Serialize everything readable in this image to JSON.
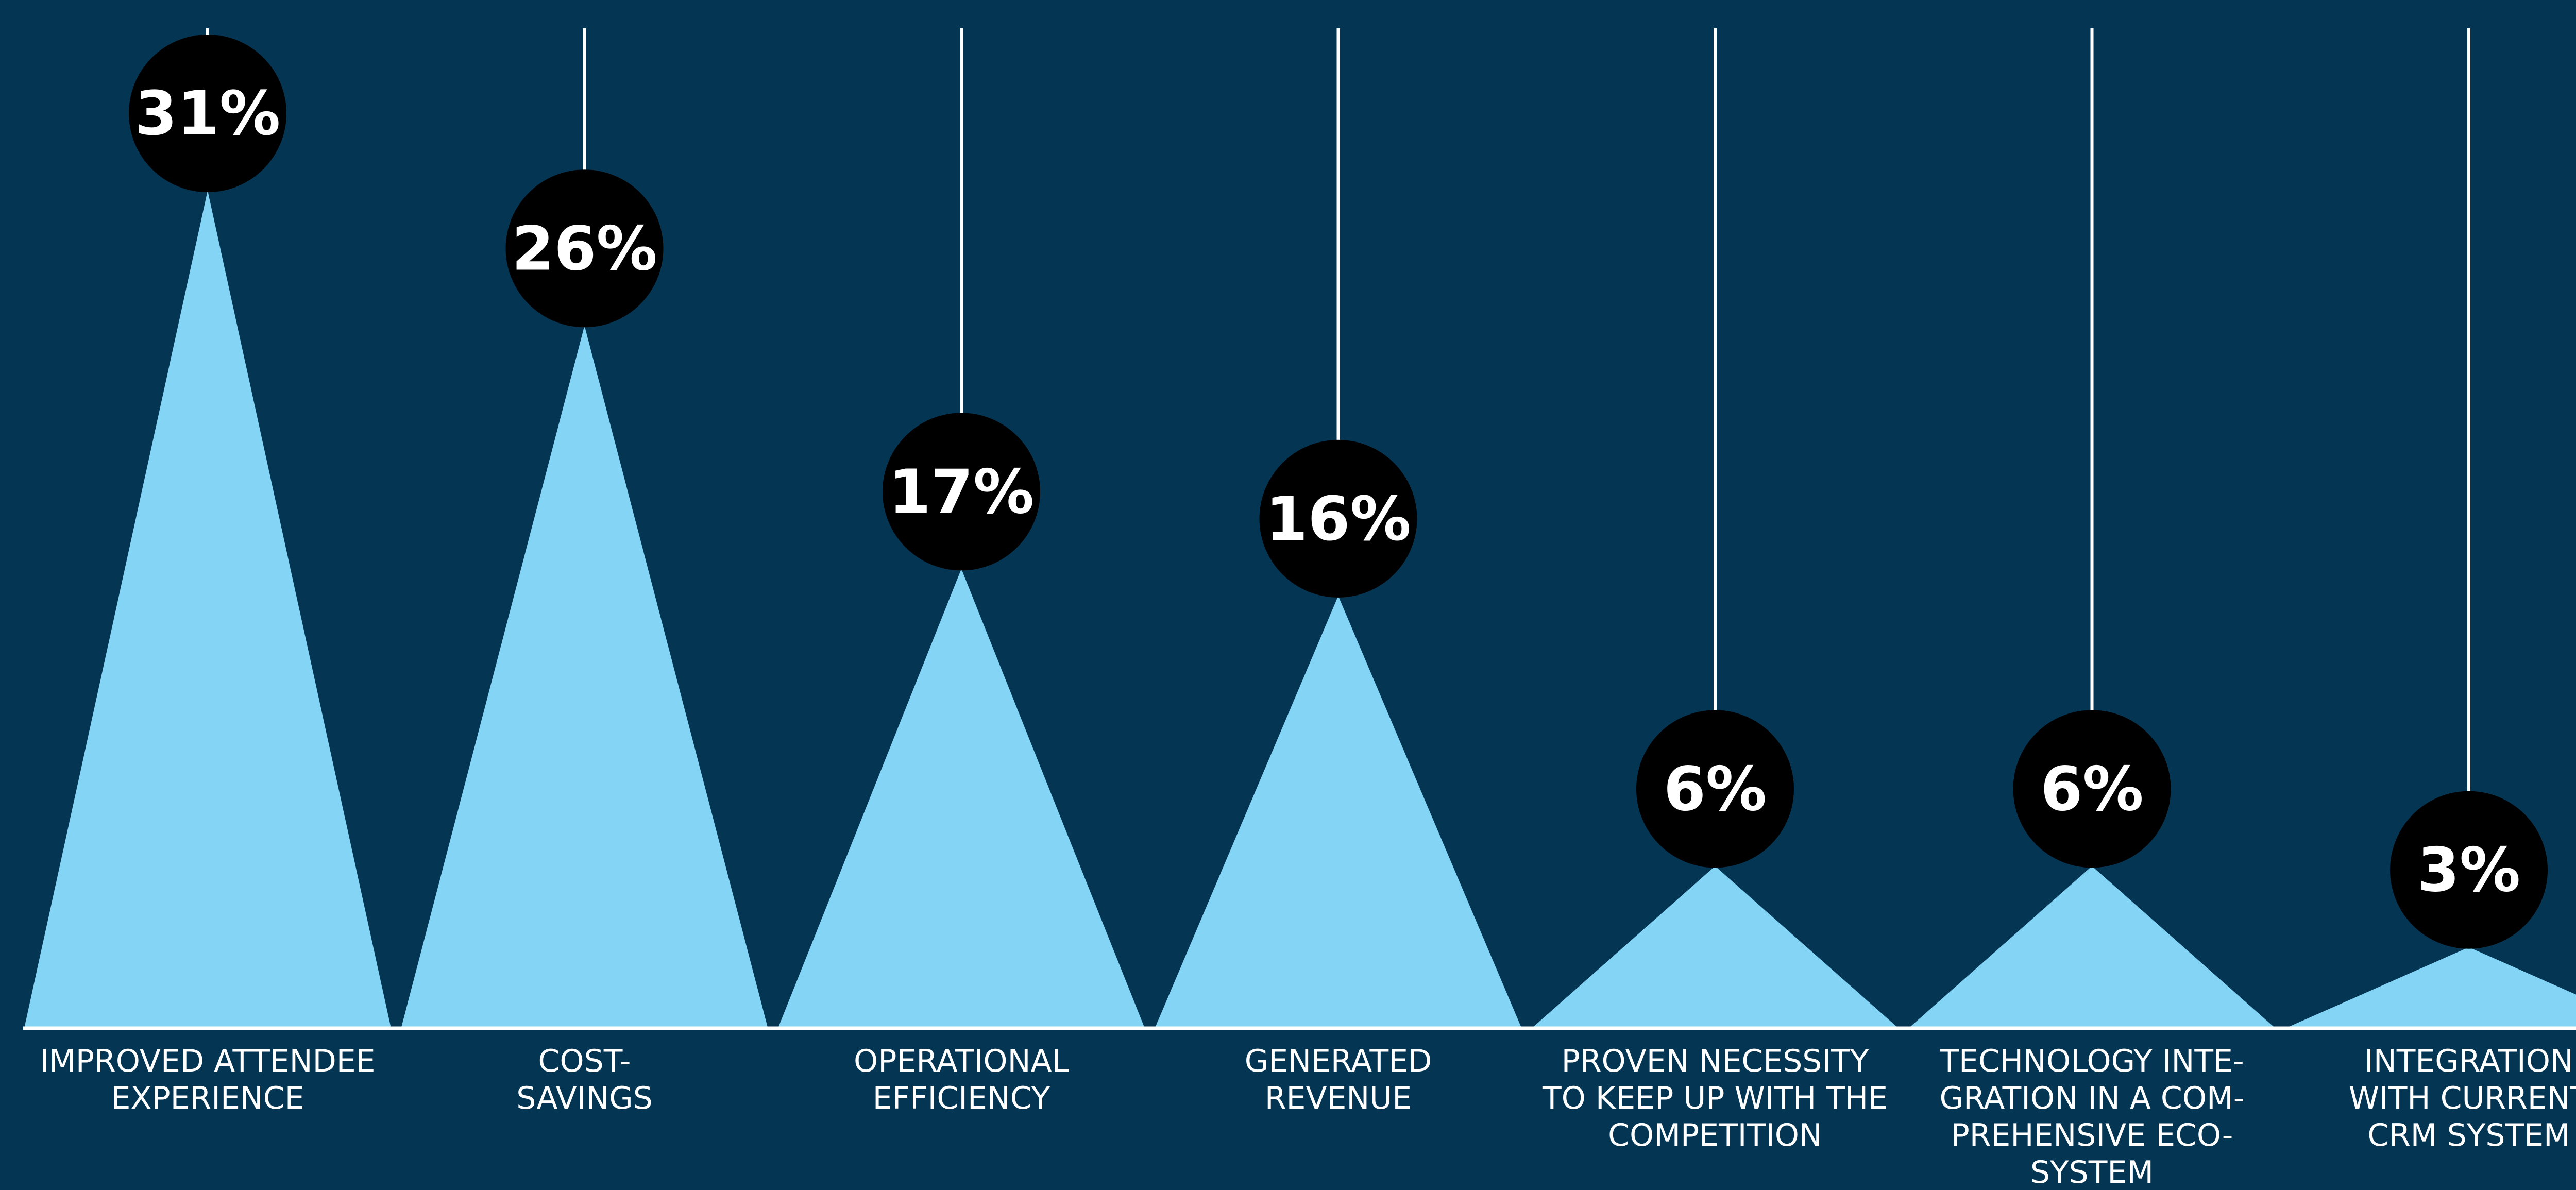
{
  "chart_data": {
    "type": "bar",
    "categories": [
      [
        "IMPROVED ATTENDEE",
        "EXPERIENCE"
      ],
      [
        "COST-",
        "SAVINGS"
      ],
      [
        "OPERATIONAL",
        "EFFICIENCY"
      ],
      [
        "GENERATED",
        "REVENUE"
      ],
      [
        "PROVEN NECESSITY",
        "TO KEEP UP WITH THE",
        "COMPETITION"
      ],
      [
        "TECHNOLOGY INTE-",
        "GRATION IN A COM-",
        "PREHENSIVE ECO-",
        "SYSTEM"
      ],
      [
        "INTEGRATION",
        "WITH CURRENT",
        "CRM SYSTEM"
      ]
    ],
    "values": [
      31,
      26,
      17,
      16,
      6,
      6,
      3
    ],
    "value_labels": [
      "31%",
      "26%",
      "17%",
      "16%",
      "6%",
      "6%",
      "3%"
    ],
    "ylim": [
      0,
      31
    ],
    "grid": false,
    "colors": {
      "background": "#043553",
      "bar": "#84d4f6",
      "bubble": "#000000",
      "line": "#ffffff",
      "text": "#ffffff"
    }
  }
}
